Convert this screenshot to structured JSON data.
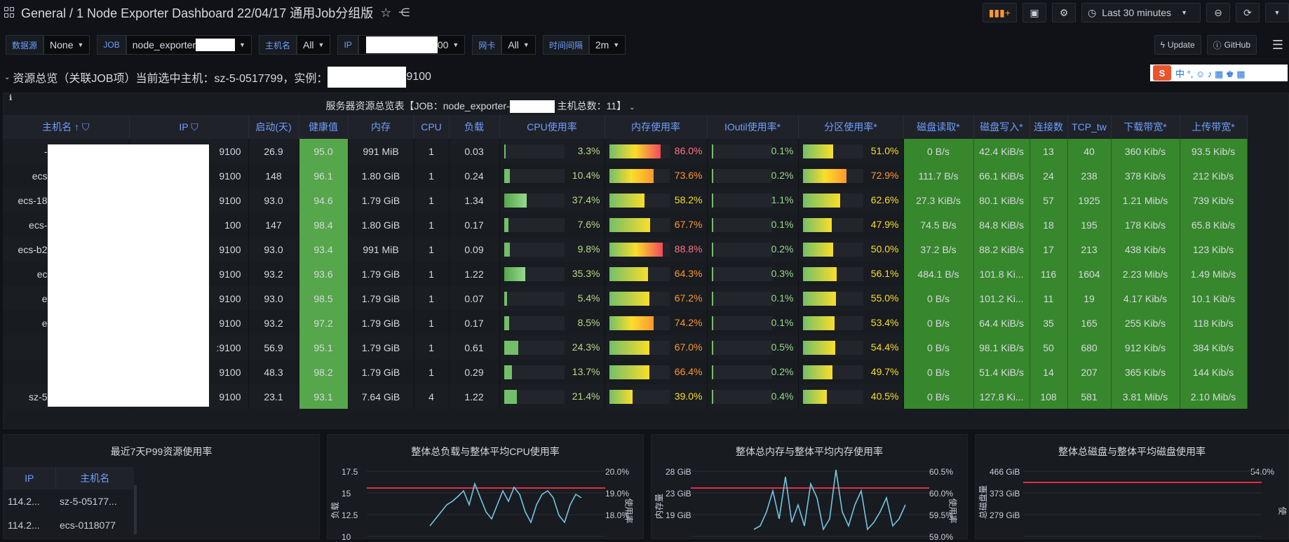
{
  "topbar": {
    "breadcrumb": "General / 1 Node Exporter Dashboard 22/04/17 通用Job分组版",
    "time_range": "Last 30 minutes"
  },
  "vars": [
    {
      "label": "数据源",
      "value": "None"
    },
    {
      "label": "JOB",
      "value": "node_exporter"
    },
    {
      "label": "主机名",
      "value": "All"
    },
    {
      "label": "IP",
      "value": "00"
    },
    {
      "label": "网卡",
      "value": "All"
    },
    {
      "label": "时间间隔",
      "value": "2m"
    }
  ],
  "buttons": {
    "update": "Update",
    "github": "GitHub"
  },
  "row": {
    "title": "资源总览（关联JOB项）当前选中主机：sz-5-0517799，实例：",
    "instance_suffix": "9100"
  },
  "ime": {
    "text": "中 °, ☺ ♪ ▦ ♚ ▦"
  },
  "table": {
    "title_prefix": "服务器资源总览表【JOB：node_exporter-",
    "title_suffix": "主机总数：11】",
    "headers": [
      "主机名",
      "IP",
      "启动(天)",
      "健康值",
      "内存",
      "CPU",
      "负载",
      "CPU使用率",
      "内存使用率",
      "IOutil使用率*",
      "分区使用率*",
      "磁盘读取*",
      "磁盘写入*",
      "连接数",
      "TCP_tw",
      "下载带宽*",
      "上传带宽*"
    ],
    "rows": [
      {
        "host": "-",
        "ip": "9100",
        "up": "26.9",
        "health": "95.0",
        "mem": "991 MiB",
        "cpu": "1",
        "load": "0.03",
        "cpu_p": "3.3%",
        "cpu_v": 3.3,
        "mem_p": "86.0%",
        "mem_v": 86.0,
        "io_p": "0.1%",
        "io_v": 0.1,
        "part_p": "51.0%",
        "part_v": 51.0,
        "dr": "0 B/s",
        "dw": "42.4 KiB/s",
        "conn": "13",
        "tw": "40",
        "down": "360 Kib/s",
        "upbw": "93.5 Kib/s"
      },
      {
        "host": "ecs",
        "ip": "9100",
        "up": "148",
        "health": "96.1",
        "mem": "1.80 GiB",
        "cpu": "1",
        "load": "0.24",
        "cpu_p": "10.4%",
        "cpu_v": 10.4,
        "mem_p": "73.6%",
        "mem_v": 73.6,
        "io_p": "0.2%",
        "io_v": 0.2,
        "part_p": "72.9%",
        "part_v": 72.9,
        "dr": "111.7 B/s",
        "dw": "66.1 KiB/s",
        "conn": "24",
        "tw": "238",
        "down": "378 Kib/s",
        "upbw": "212 Kib/s"
      },
      {
        "host": "ecs-18",
        "ip": "9100",
        "up": "93.0",
        "health": "94.6",
        "mem": "1.79 GiB",
        "cpu": "1",
        "load": "1.34",
        "cpu_p": "37.4%",
        "cpu_v": 37.4,
        "mem_p": "58.2%",
        "mem_v": 58.2,
        "io_p": "1.1%",
        "io_v": 1.1,
        "part_p": "62.6%",
        "part_v": 62.6,
        "dr": "27.3 KiB/s",
        "dw": "80.1 KiB/s",
        "conn": "57",
        "tw": "1925",
        "down": "1.21 Mib/s",
        "upbw": "739 Kib/s"
      },
      {
        "host": "ecs-",
        "ip": "100",
        "up": "147",
        "health": "98.4",
        "mem": "1.80 GiB",
        "cpu": "1",
        "load": "0.17",
        "cpu_p": "7.6%",
        "cpu_v": 7.6,
        "mem_p": "67.7%",
        "mem_v": 67.7,
        "io_p": "0.1%",
        "io_v": 0.1,
        "part_p": "47.9%",
        "part_v": 47.9,
        "dr": "74.5 B/s",
        "dw": "84.8 KiB/s",
        "conn": "18",
        "tw": "195",
        "down": "178 Kib/s",
        "upbw": "65.8 Kib/s"
      },
      {
        "host": "ecs-b2",
        "ip": "9100",
        "up": "93.0",
        "health": "93.4",
        "mem": "991 MiB",
        "cpu": "1",
        "load": "0.09",
        "cpu_p": "9.8%",
        "cpu_v": 9.8,
        "mem_p": "88.8%",
        "mem_v": 88.8,
        "io_p": "0.2%",
        "io_v": 0.2,
        "part_p": "50.0%",
        "part_v": 50.0,
        "dr": "37.2 B/s",
        "dw": "88.2 KiB/s",
        "conn": "17",
        "tw": "213",
        "down": "438 Kib/s",
        "upbw": "123 Kib/s"
      },
      {
        "host": "ec",
        "ip": "9100",
        "up": "93.2",
        "health": "93.6",
        "mem": "1.79 GiB",
        "cpu": "1",
        "load": "1.22",
        "cpu_p": "35.3%",
        "cpu_v": 35.3,
        "mem_p": "64.3%",
        "mem_v": 64.3,
        "io_p": "0.3%",
        "io_v": 0.3,
        "part_p": "56.1%",
        "part_v": 56.1,
        "dr": "484.1 B/s",
        "dw": "101.8 Ki...",
        "conn": "116",
        "tw": "1604",
        "down": "2.23 Mib/s",
        "upbw": "1.49 Mib/s"
      },
      {
        "host": "e",
        "ip": "9100",
        "up": "93.0",
        "health": "98.5",
        "mem": "1.79 GiB",
        "cpu": "1",
        "load": "0.07",
        "cpu_p": "5.4%",
        "cpu_v": 5.4,
        "mem_p": "67.2%",
        "mem_v": 67.2,
        "io_p": "0.1%",
        "io_v": 0.1,
        "part_p": "55.0%",
        "part_v": 55.0,
        "dr": "0 B/s",
        "dw": "101.2 Ki...",
        "conn": "11",
        "tw": "19",
        "down": "4.17 Kib/s",
        "upbw": "10.1 Kib/s"
      },
      {
        "host": "e",
        "ip": "9100",
        "up": "93.2",
        "health": "97.2",
        "mem": "1.79 GiB",
        "cpu": "1",
        "load": "0.17",
        "cpu_p": "8.5%",
        "cpu_v": 8.5,
        "mem_p": "74.2%",
        "mem_v": 74.2,
        "io_p": "0.1%",
        "io_v": 0.1,
        "part_p": "53.4%",
        "part_v": 53.4,
        "dr": "0 B/s",
        "dw": "64.4 KiB/s",
        "conn": "35",
        "tw": "165",
        "down": "255 Kib/s",
        "upbw": "118 Kib/s"
      },
      {
        "host": "",
        "ip": ":9100",
        "up": "56.9",
        "health": "95.1",
        "mem": "1.79 GiB",
        "cpu": "1",
        "load": "0.61",
        "cpu_p": "24.3%",
        "cpu_v": 24.3,
        "mem_p": "67.0%",
        "mem_v": 67.0,
        "io_p": "0.5%",
        "io_v": 0.5,
        "part_p": "54.4%",
        "part_v": 54.4,
        "dr": "0 B/s",
        "dw": "98.1 KiB/s",
        "conn": "50",
        "tw": "680",
        "down": "912 Kib/s",
        "upbw": "384 Kib/s"
      },
      {
        "host": "",
        "ip": "9100",
        "up": "48.3",
        "health": "98.2",
        "mem": "1.79 GiB",
        "cpu": "1",
        "load": "0.29",
        "cpu_p": "13.7%",
        "cpu_v": 13.7,
        "mem_p": "66.4%",
        "mem_v": 66.4,
        "io_p": "0.2%",
        "io_v": 0.2,
        "part_p": "49.7%",
        "part_v": 49.7,
        "dr": "0 B/s",
        "dw": "51.4 KiB/s",
        "conn": "14",
        "tw": "207",
        "down": "365 Kib/s",
        "upbw": "144 Kib/s"
      },
      {
        "host": "sz-5",
        "ip": "9100",
        "up": "23.1",
        "health": "93.1",
        "mem": "7.64 GiB",
        "cpu": "4",
        "load": "1.22",
        "cpu_p": "21.4%",
        "cpu_v": 21.4,
        "mem_p": "39.0%",
        "mem_v": 39.0,
        "io_p": "0.4%",
        "io_v": 0.4,
        "part_p": "40.5%",
        "part_v": 40.5,
        "dr": "0 B/s",
        "dw": "127.8 Ki...",
        "conn": "108",
        "tw": "581",
        "down": "3.81 Mib/s",
        "upbw": "2.10 Mib/s"
      }
    ]
  },
  "p99": {
    "title": "最近7天P99资源使用率",
    "headers": [
      "IP",
      "主机名"
    ],
    "rows": [
      [
        "114.2...",
        "sz-5-05177..."
      ],
      [
        "114.2...",
        "ecs-0118077"
      ]
    ]
  },
  "charts": [
    {
      "title": "整体总负载与整体平均CPU使用率",
      "left_ticks": [
        "17.5",
        "15",
        "12.5",
        "10"
      ],
      "right_ticks": [
        "20.0%",
        "19.0%",
        "18.0%"
      ],
      "ylabel": "负载",
      "y2label": "使用率"
    },
    {
      "title": "整体总内存与整体平均内存使用率",
      "left_ticks": [
        "28 GiB",
        "23 GiB",
        "19 GiB"
      ],
      "right_ticks": [
        "60.5%",
        "60.0%",
        "59.5%",
        "59.0%"
      ],
      "ylabel": "内存量",
      "y2label": "使用率"
    },
    {
      "title": "整体总磁盘与整体平均磁盘使用率",
      "left_ticks": [
        "466 GiB",
        "373 GiB",
        "279 GiB"
      ],
      "right_ticks": [
        "54.0%"
      ],
      "ylabel": "总磁盘量",
      "y2label": "使"
    }
  ]
}
